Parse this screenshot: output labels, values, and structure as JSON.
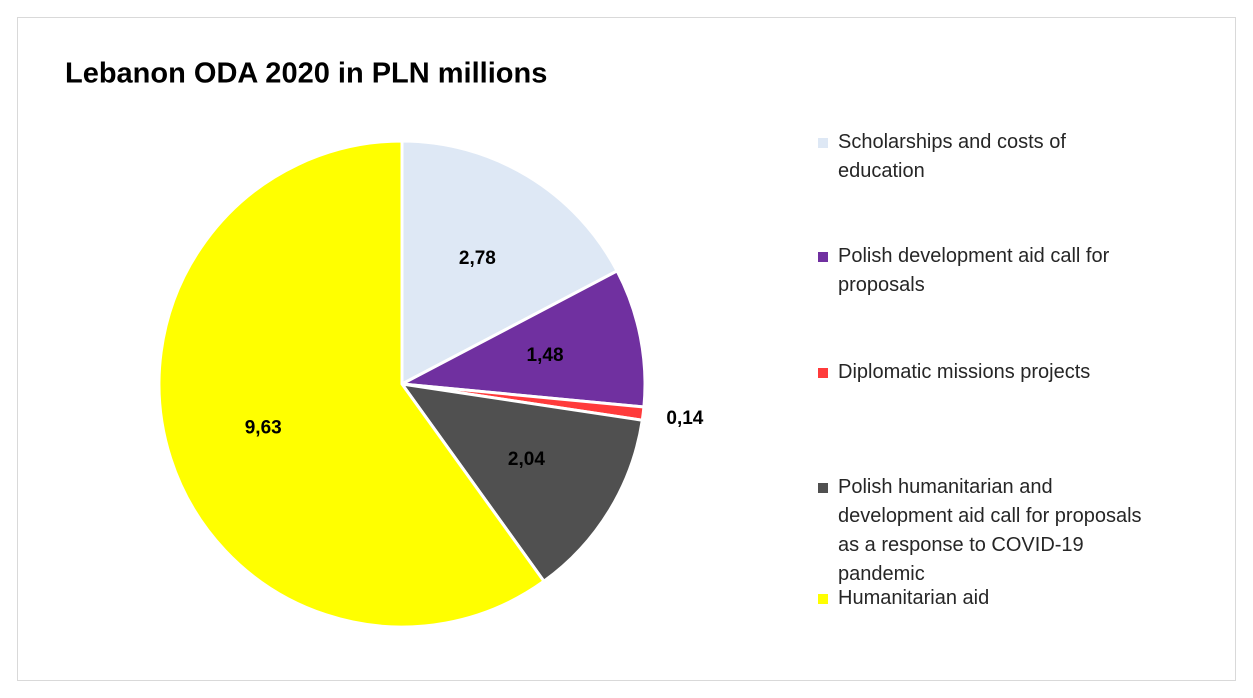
{
  "chart_data": {
    "type": "pie",
    "title": "Lebanon ODA 2020 in PLN millions",
    "categories": [
      "Scholarships and costs of education",
      "Polish development aid call for proposals",
      "Diplomatic missions projects",
      "Polish humanitarian and development aid call for proposals as a response to COVID-19 pandemic",
      "Humanitarian aid"
    ],
    "values": [
      2.78,
      1.48,
      0.14,
      2.04,
      9.63
    ],
    "value_labels": [
      "2,78",
      "1,48",
      "0,14",
      "2,04",
      "9,63"
    ],
    "colors": [
      "#dee8f5",
      "#7030a0",
      "#ff3b3b",
      "#505050",
      "#ffff00"
    ],
    "legend": "right"
  }
}
